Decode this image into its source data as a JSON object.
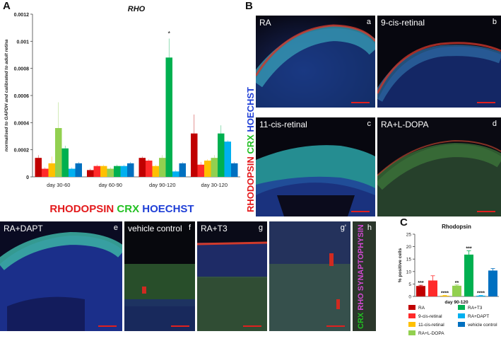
{
  "panel_letters": {
    "a": "A",
    "b": "B",
    "c": "C"
  },
  "rho_chart": {
    "chart_data": {
      "type": "bar",
      "title": "RHO",
      "ylabel_lines": [
        "normalised to GAPDH and calibrated to adult retina"
      ],
      "categories": [
        "day 30-60",
        "day 60-90",
        "day 90-120",
        "day 30-120"
      ],
      "ylim": [
        0,
        0.0012
      ],
      "yticks": [
        "0",
        "0.0002",
        "0.0004",
        "0.0006",
        "0.0008",
        "0.001",
        "0.0012"
      ],
      "series_colors": [
        "#c00000",
        "#ff2a2a",
        "#ffc000",
        "#92d050",
        "#00b050",
        "#00b0f0",
        "#0070c0"
      ],
      "series": [
        {
          "values": [
            0.00014,
            5e-05,
            0.00014,
            0.00032
          ]
        },
        {
          "values": [
            6e-05,
            8e-05,
            0.00012,
            9e-05
          ]
        },
        {
          "values": [
            0.0001,
            8e-05,
            8e-05,
            0.00012
          ]
        },
        {
          "values": [
            0.00036,
            6e-05,
            0.00014,
            0.00014
          ]
        },
        {
          "values": [
            0.00021,
            8e-05,
            0.00088,
            0.00032
          ]
        },
        {
          "values": [
            6e-05,
            8e-05,
            4e-05,
            0.00026
          ]
        },
        {
          "values": [
            0.0001,
            0.0001,
            0.0001,
            0.0001
          ]
        }
      ],
      "errors": [
        [
          2e-05,
          1e-05,
          1e-05,
          0.00014
        ],
        [
          1e-05,
          1e-05,
          1e-05,
          2e-05
        ],
        [
          5e-05,
          1e-05,
          1e-05,
          1e-05
        ],
        [
          0.00019,
          1e-05,
          2e-05,
          2e-05
        ],
        [
          2e-05,
          1e-05,
          0.00014,
          6e-05
        ],
        [
          1e-05,
          1e-05,
          1e-05,
          1e-05
        ],
        [
          1e-05,
          1e-05,
          1e-05,
          1e-05
        ]
      ],
      "annotation": "*"
    },
    "stain": {
      "rho": "RHODOPSIN",
      "crx": "CRX",
      "hoechst": "HOECHST"
    }
  },
  "colors": {
    "red": "#e31a1c",
    "green": "#22c022",
    "blue": "#1f3fd6"
  },
  "panels_b": [
    {
      "label": "RA",
      "sub": "a"
    },
    {
      "label": "9-cis-retinal",
      "sub": "b"
    },
    {
      "label": "11-cis-retinal",
      "sub": "c"
    },
    {
      "label": "RA+L-DOPA",
      "sub": "d"
    }
  ],
  "panels_e": [
    {
      "label": "RA+DAPT",
      "sub": "e"
    },
    {
      "label": "vehicle control",
      "sub": "f"
    },
    {
      "label": "RA+T3",
      "sub": "g"
    },
    {
      "label": "",
      "sub": "g'"
    },
    {
      "label": "",
      "sub": "h"
    }
  ],
  "b_side_label": {
    "rho": "RHODOPSIN",
    "crx": "CRX",
    "hoechst": "HOECHST"
  },
  "h_side_label": {
    "crx": "CRX",
    "rho": "RHO",
    "syn": "SYNAPTOPHYSIN"
  },
  "rhodopsin_chart": {
    "chart_data": {
      "type": "bar",
      "title": "Rhodopsin",
      "ylabel": "% positive cells",
      "xlabel": "day 90-120",
      "ylim": [
        0,
        25
      ],
      "yticks": [
        "0",
        "5",
        "10",
        "15",
        "20",
        "25"
      ],
      "categories": [
        "RA",
        "9-cis-retinal",
        "11-cis-retinal",
        "RA+L-DOPA",
        "RA+T3",
        "RA+DAPT",
        "vehicle control"
      ],
      "values": [
        4.2,
        6.4,
        0.3,
        4.3,
        16.8,
        0.3,
        10.4
      ],
      "errors": [
        0.3,
        1.9,
        0.1,
        0.3,
        1.5,
        0.1,
        0.8
      ],
      "significance": [
        "***",
        "",
        "****",
        "**",
        "***",
        "****",
        ""
      ],
      "colors": [
        "#c00000",
        "#ff2a2a",
        "#ffc000",
        "#92d050",
        "#00b050",
        "#00b0f0",
        "#0070c0"
      ]
    }
  }
}
